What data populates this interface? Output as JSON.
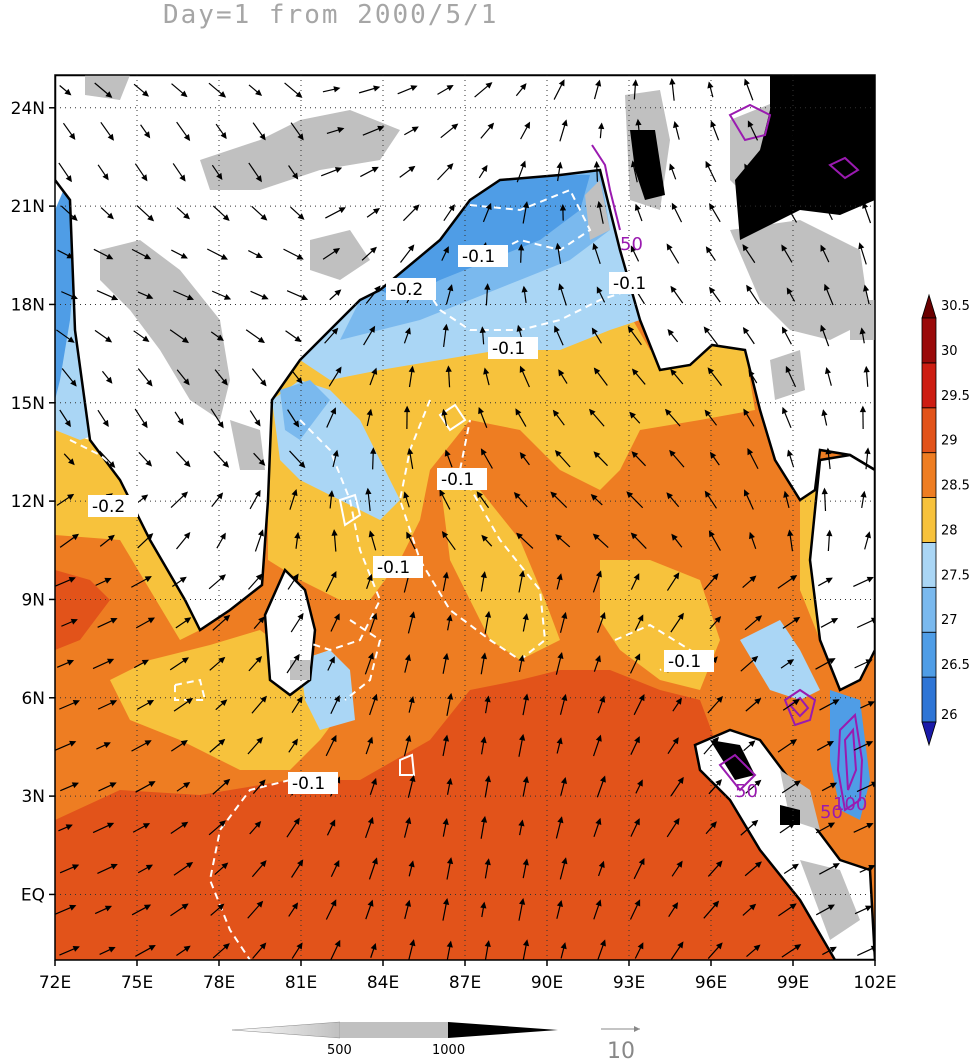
{
  "title": "Day=1 from 2000/5/1",
  "map": {
    "lon_range": [
      72,
      102
    ],
    "lat_range": [
      -2,
      25
    ],
    "lon_ticks": [
      "72E",
      "75E",
      "78E",
      "81E",
      "84E",
      "87E",
      "90E",
      "93E",
      "96E",
      "99E",
      "102E"
    ],
    "lat_ticks": [
      "EQ",
      "3N",
      "6N",
      "9N",
      "12N",
      "15N",
      "18N",
      "21N",
      "24N"
    ],
    "grid": true
  },
  "colorbar": {
    "labels": [
      "26",
      "26.5",
      "27",
      "27.5",
      "28",
      "28.5",
      "29",
      "29.5",
      "30",
      "30.5"
    ],
    "colors": [
      "#1a1aa8",
      "#2e75d6",
      "#4f9de6",
      "#7ab9ee",
      "#aad6f5",
      "#f7c23c",
      "#ee7d22",
      "#e2531a",
      "#cd1d12",
      "#9a0a0a",
      "#6a0000"
    ]
  },
  "contour_labels": {
    "white": [
      "-0.1",
      "-0.2",
      "-0.1",
      "-0.1",
      "-0.2",
      "-0.1",
      "-0.1",
      "-0.1",
      "-0.1"
    ],
    "purple": [
      "50",
      "50",
      "50",
      "100"
    ]
  },
  "shade_legend": {
    "labels": [
      "500",
      "1000"
    ]
  },
  "vector_legend": {
    "label": "10"
  }
}
